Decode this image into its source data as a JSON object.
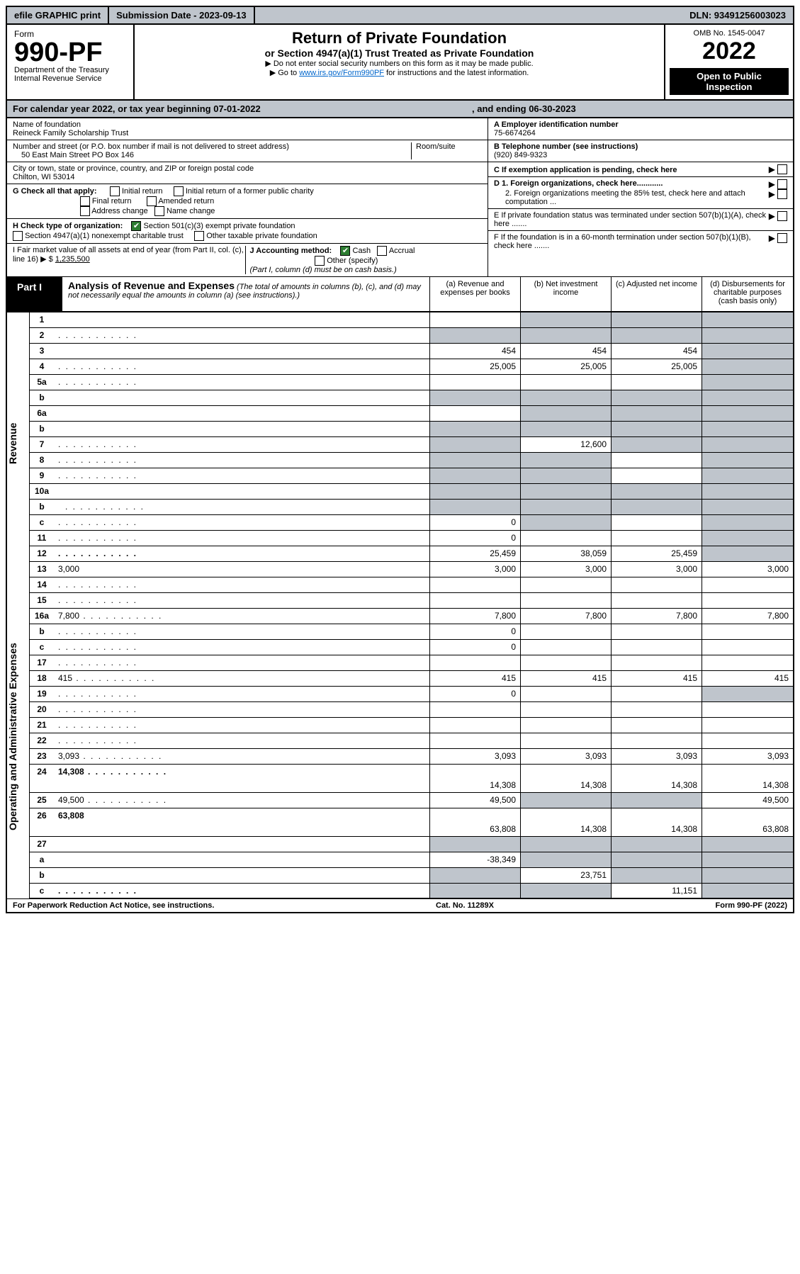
{
  "topbar": {
    "efile": "efile GRAPHIC print",
    "submission_label": "Submission Date - 2023-09-13",
    "dln": "DLN: 93491256003023"
  },
  "header": {
    "form_word": "Form",
    "form_no": "990-PF",
    "dept1": "Department of the Treasury",
    "dept2": "Internal Revenue Service",
    "title": "Return of Private Foundation",
    "subtitle": "or Section 4947(a)(1) Trust Treated as Private Foundation",
    "note1": "▶ Do not enter social security numbers on this form as it may be made public.",
    "note2_pre": "▶ Go to ",
    "note2_link": "www.irs.gov/Form990PF",
    "note2_post": " for instructions and the latest information.",
    "omb": "OMB No. 1545-0047",
    "year": "2022",
    "otp": "Open to Public Inspection"
  },
  "calyear": {
    "label": "For calendar year 2022, or tax year beginning 07-01-2022",
    "end": ", and ending 06-30-2023"
  },
  "left": {
    "name_label": "Name of foundation",
    "name": "Reineck Family Scholarship Trust",
    "addr_label": "Number and street (or P.O. box number if mail is not delivered to street address)",
    "addr": "50 East Main Street PO Box 146",
    "room_label": "Room/suite",
    "city_label": "City or town, state or province, country, and ZIP or foreign postal code",
    "city": "Chilton, WI  53014",
    "g_label": "G Check all that apply:",
    "g_initial": "Initial return",
    "g_initial_pub": "Initial return of a former public charity",
    "g_final": "Final return",
    "g_amended": "Amended return",
    "g_addr": "Address change",
    "g_name": "Name change",
    "h_label": "H Check type of organization:",
    "h_501": "Section 501(c)(3) exempt private foundation",
    "h_4947": "Section 4947(a)(1) nonexempt charitable trust",
    "h_other": "Other taxable private foundation",
    "i_label": "I Fair market value of all assets at end of year (from Part II, col. (c), line 16) ▶ $",
    "i_value": "1,235,500",
    "j_label": "J Accounting method:",
    "j_cash": "Cash",
    "j_accrual": "Accrual",
    "j_other": "Other (specify)",
    "j_note": "(Part I, column (d) must be on cash basis.)"
  },
  "right": {
    "a_label": "A Employer identification number",
    "a_val": "75-6674264",
    "b_label": "B Telephone number (see instructions)",
    "b_val": "(920) 849-9323",
    "c_label": "C If exemption application is pending, check here",
    "d1": "D 1. Foreign organizations, check here............",
    "d2": "2. Foreign organizations meeting the 85% test, check here and attach computation ...",
    "e_label": "E  If private foundation status was terminated under section 507(b)(1)(A), check here .......",
    "f_label": "F  If the foundation is in a 60-month termination under section 507(b)(1)(B), check here .......",
    "arrow": "▶"
  },
  "part1": {
    "tab": "Part I",
    "title": "Analysis of Revenue and Expenses",
    "title_note": " (The total of amounts in columns (b), (c), and (d) may not necessarily equal the amounts in column (a) (see instructions).)",
    "col_a": "(a)  Revenue and expenses per books",
    "col_b": "(b)  Net investment income",
    "col_c": "(c)  Adjusted net income",
    "col_d": "(d)  Disbursements for charitable purposes (cash basis only)"
  },
  "side_labels": {
    "revenue": "Revenue",
    "expenses": "Operating and Administrative Expenses"
  },
  "rows": [
    {
      "n": "1",
      "d": "",
      "a": "",
      "b": "",
      "c": "",
      "dgrey": true,
      "cgrey": true,
      "bgrey": true
    },
    {
      "n": "2",
      "d": "",
      "a": "",
      "b": "",
      "c": "",
      "allgrey": true,
      "dots": true
    },
    {
      "n": "3",
      "d": "",
      "a": "454",
      "b": "454",
      "c": "454",
      "dgrey": true
    },
    {
      "n": "4",
      "d": "",
      "a": "25,005",
      "b": "25,005",
      "c": "25,005",
      "dgrey": true,
      "dots": true
    },
    {
      "n": "5a",
      "d": "",
      "a": "",
      "b": "",
      "c": "",
      "dgrey": true,
      "dots": true
    },
    {
      "n": "b",
      "d": "",
      "a": "",
      "b": "",
      "c": "",
      "allgrey": true,
      "inset": true
    },
    {
      "n": "6a",
      "d": "",
      "a": "",
      "b": "",
      "c": "",
      "bgrey": true,
      "cgrey": true,
      "dgrey": true
    },
    {
      "n": "b",
      "d": "",
      "a": "",
      "b": "",
      "c": "",
      "allgrey": true,
      "inset": true
    },
    {
      "n": "7",
      "d": "",
      "a": "",
      "b": "12,600",
      "c": "",
      "agrey": true,
      "cgrey": true,
      "dgrey": true,
      "dots": true
    },
    {
      "n": "8",
      "d": "",
      "a": "",
      "b": "",
      "c": "",
      "agrey": true,
      "bgrey": true,
      "dgrey": true,
      "dots": true
    },
    {
      "n": "9",
      "d": "",
      "a": "",
      "b": "",
      "c": "",
      "agrey": true,
      "bgrey": true,
      "dgrey": true,
      "dots": true
    },
    {
      "n": "10a",
      "d": "",
      "a": "",
      "b": "",
      "c": "",
      "allgrey": true,
      "inset": true
    },
    {
      "n": "b",
      "d": "",
      "a": "",
      "b": "",
      "c": "",
      "allgrey": true,
      "inset": true,
      "dots": true
    },
    {
      "n": "c",
      "d": "",
      "a": "0",
      "b": "",
      "c": "",
      "bgrey": true,
      "dgrey": true,
      "dots": true
    },
    {
      "n": "11",
      "d": "",
      "a": "0",
      "b": "",
      "c": "",
      "dgrey": true,
      "dots": true
    },
    {
      "n": "12",
      "d": "",
      "a": "25,459",
      "b": "38,059",
      "c": "25,459",
      "dgrey": true,
      "bold": true,
      "dots": true
    },
    {
      "n": "13",
      "d": "3,000",
      "a": "3,000",
      "b": "3,000",
      "c": "3,000"
    },
    {
      "n": "14",
      "d": "",
      "a": "",
      "b": "",
      "c": "",
      "dots": true
    },
    {
      "n": "15",
      "d": "",
      "a": "",
      "b": "",
      "c": "",
      "dots": true
    },
    {
      "n": "16a",
      "d": "7,800",
      "a": "7,800",
      "b": "7,800",
      "c": "7,800",
      "dots": true
    },
    {
      "n": "b",
      "d": "",
      "a": "0",
      "b": "",
      "c": "",
      "dots": true
    },
    {
      "n": "c",
      "d": "",
      "a": "0",
      "b": "",
      "c": "",
      "dots": true
    },
    {
      "n": "17",
      "d": "",
      "a": "",
      "b": "",
      "c": "",
      "dots": true
    },
    {
      "n": "18",
      "d": "415",
      "a": "415",
      "b": "415",
      "c": "415",
      "dots": true
    },
    {
      "n": "19",
      "d": "",
      "a": "0",
      "b": "",
      "c": "",
      "dgrey": true,
      "dots": true
    },
    {
      "n": "20",
      "d": "",
      "a": "",
      "b": "",
      "c": "",
      "dots": true
    },
    {
      "n": "21",
      "d": "",
      "a": "",
      "b": "",
      "c": "",
      "dots": true
    },
    {
      "n": "22",
      "d": "",
      "a": "",
      "b": "",
      "c": "",
      "dots": true
    },
    {
      "n": "23",
      "d": "3,093",
      "a": "3,093",
      "b": "3,093",
      "c": "3,093",
      "dots": true
    },
    {
      "n": "24",
      "d": "14,308",
      "a": "14,308",
      "b": "14,308",
      "c": "14,308",
      "bold": true,
      "dots": true,
      "tall": true
    },
    {
      "n": "25",
      "d": "49,500",
      "a": "49,500",
      "b": "",
      "c": "",
      "bgrey": true,
      "cgrey": true,
      "dots": true
    },
    {
      "n": "26",
      "d": "63,808",
      "a": "63,808",
      "b": "14,308",
      "c": "14,308",
      "bold": true,
      "tall": true
    },
    {
      "n": "27",
      "d": "",
      "a": "",
      "b": "",
      "c": "",
      "allgrey": true
    },
    {
      "n": "a",
      "d": "",
      "a": "-38,349",
      "b": "",
      "c": "",
      "bgrey": true,
      "cgrey": true,
      "dgrey": true,
      "bold": true
    },
    {
      "n": "b",
      "d": "",
      "a": "",
      "b": "23,751",
      "c": "",
      "agrey": true,
      "cgrey": true,
      "dgrey": true,
      "bold": true
    },
    {
      "n": "c",
      "d": "",
      "a": "",
      "b": "",
      "c": "11,151",
      "agrey": true,
      "bgrey": true,
      "dgrey": true,
      "bold": true,
      "dots": true
    }
  ],
  "footer": {
    "left": "For Paperwork Reduction Act Notice, see instructions.",
    "mid": "Cat. No. 11289X",
    "right": "Form 990-PF (2022)"
  },
  "style": {
    "grey": "#bfc5cc",
    "black": "#000000",
    "link": "#0066cc",
    "check_green": "#2e7d32"
  }
}
